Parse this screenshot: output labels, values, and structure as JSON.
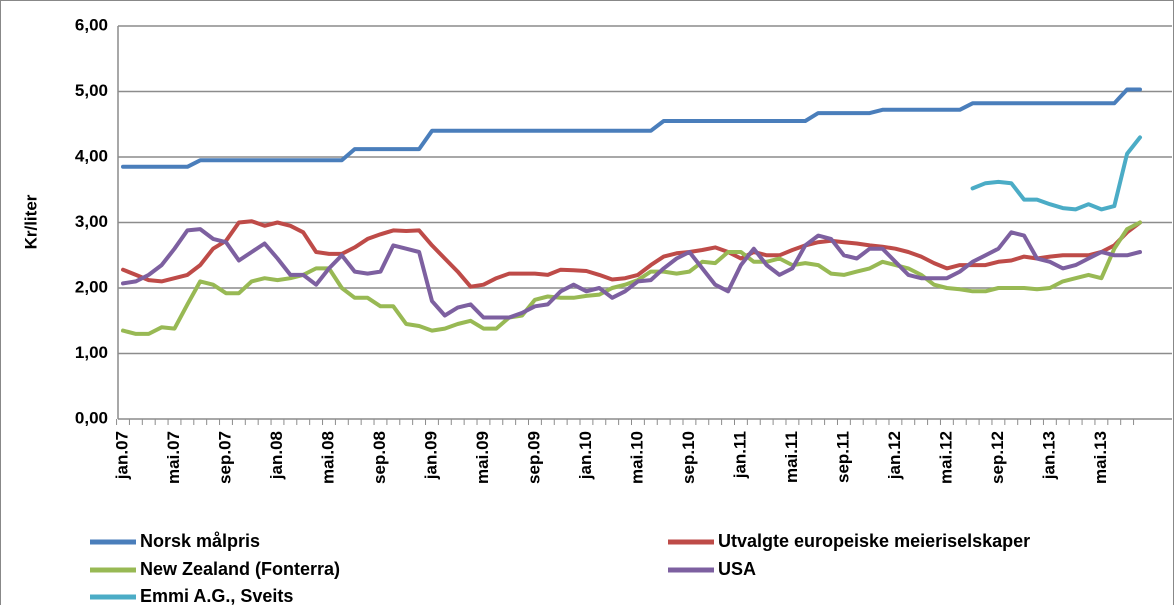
{
  "chart_data": {
    "type": "line",
    "ylabel": "Kr/liter",
    "categories": [
      "jan.07",
      null,
      null,
      null,
      "mai.07",
      null,
      null,
      null,
      "sep.07",
      null,
      null,
      null,
      "jan.08",
      null,
      null,
      null,
      "mai.08",
      null,
      null,
      null,
      "sep.08",
      null,
      null,
      null,
      "jan.09",
      null,
      null,
      null,
      "mai.09",
      null,
      null,
      null,
      "sep.09",
      null,
      null,
      null,
      "jan.10",
      null,
      null,
      null,
      "mai.10",
      null,
      null,
      null,
      "sep.10",
      null,
      null,
      null,
      "jan.11",
      null,
      null,
      null,
      "mai.11",
      null,
      null,
      null,
      "sep.11",
      null,
      null,
      null,
      "jan.12",
      null,
      null,
      null,
      "mai.12",
      null,
      null,
      null,
      "sep.12",
      null,
      null,
      null,
      "jan.13",
      null,
      null,
      null,
      "mai.13",
      null,
      null,
      null
    ],
    "series": [
      {
        "name": "Norsk målpris",
        "color": "#4a7ebb",
        "values": [
          3.85,
          3.85,
          3.85,
          3.85,
          3.85,
          3.85,
          3.95,
          3.95,
          3.95,
          3.95,
          3.95,
          3.95,
          3.95,
          3.95,
          3.95,
          3.95,
          3.95,
          3.95,
          4.12,
          4.12,
          4.12,
          4.12,
          4.12,
          4.12,
          4.4,
          4.4,
          4.4,
          4.4,
          4.4,
          4.4,
          4.4,
          4.4,
          4.4,
          4.4,
          4.4,
          4.4,
          4.4,
          4.4,
          4.4,
          4.4,
          4.4,
          4.4,
          4.55,
          4.55,
          4.55,
          4.55,
          4.55,
          4.55,
          4.55,
          4.55,
          4.55,
          4.55,
          4.55,
          4.55,
          4.67,
          4.67,
          4.67,
          4.67,
          4.67,
          4.72,
          4.72,
          4.72,
          4.72,
          4.72,
          4.72,
          4.72,
          4.82,
          4.82,
          4.82,
          4.82,
          4.82,
          4.82,
          4.82,
          4.82,
          4.82,
          4.82,
          4.82,
          4.82,
          5.03,
          5.03
        ]
      },
      {
        "name": "Utvalgte europeiske meieriselskaper",
        "color": "#be4b48",
        "values": [
          2.28,
          2.2,
          2.12,
          2.1,
          2.15,
          2.2,
          2.35,
          2.6,
          2.72,
          3.0,
          3.02,
          2.95,
          3.0,
          2.95,
          2.85,
          2.55,
          2.52,
          2.52,
          2.62,
          2.75,
          2.82,
          2.88,
          2.87,
          2.88,
          2.65,
          2.45,
          2.25,
          2.02,
          2.05,
          2.15,
          2.22,
          2.22,
          2.22,
          2.2,
          2.28,
          2.27,
          2.26,
          2.2,
          2.13,
          2.15,
          2.2,
          2.35,
          2.48,
          2.53,
          2.55,
          2.58,
          2.62,
          2.55,
          2.45,
          2.55,
          2.5,
          2.5,
          2.58,
          2.65,
          2.7,
          2.72,
          2.7,
          2.68,
          2.65,
          2.63,
          2.6,
          2.55,
          2.48,
          2.38,
          2.3,
          2.35,
          2.35,
          2.35,
          2.4,
          2.42,
          2.48,
          2.45,
          2.48,
          2.5,
          2.5,
          2.5,
          2.55,
          2.65,
          2.85,
          3.0
        ]
      },
      {
        "name": "New Zealand (Fonterra)",
        "color": "#98b954",
        "values": [
          1.35,
          1.3,
          1.3,
          1.4,
          1.38,
          1.75,
          2.1,
          2.05,
          1.92,
          1.92,
          2.1,
          2.15,
          2.12,
          2.15,
          2.2,
          2.3,
          2.3,
          2.0,
          1.85,
          1.85,
          1.72,
          1.72,
          1.45,
          1.42,
          1.35,
          1.38,
          1.45,
          1.5,
          1.38,
          1.38,
          1.55,
          1.58,
          1.82,
          1.87,
          1.85,
          1.85,
          1.88,
          1.9,
          2.0,
          2.05,
          2.12,
          2.25,
          2.25,
          2.22,
          2.25,
          2.4,
          2.38,
          2.55,
          2.55,
          2.4,
          2.4,
          2.45,
          2.35,
          2.38,
          2.35,
          2.22,
          2.2,
          2.25,
          2.3,
          2.4,
          2.35,
          2.3,
          2.2,
          2.05,
          2.0,
          1.98,
          1.95,
          1.95,
          2.0,
          2.0,
          2.0,
          1.98,
          2.0,
          2.1,
          2.15,
          2.2,
          2.15,
          2.6,
          2.9,
          3.0
        ]
      },
      {
        "name": "USA",
        "color": "#7d60a0",
        "values": [
          2.07,
          2.1,
          2.2,
          2.35,
          2.6,
          2.88,
          2.9,
          2.75,
          2.7,
          2.42,
          2.55,
          2.68,
          2.45,
          2.2,
          2.2,
          2.05,
          2.3,
          2.5,
          2.25,
          2.22,
          2.25,
          2.65,
          2.6,
          2.55,
          1.8,
          1.58,
          1.7,
          1.75,
          1.55,
          1.55,
          1.55,
          1.62,
          1.72,
          1.75,
          1.95,
          2.05,
          1.95,
          2.0,
          1.85,
          1.95,
          2.1,
          2.12,
          2.3,
          2.45,
          2.55,
          2.3,
          2.05,
          1.95,
          2.35,
          2.6,
          2.35,
          2.2,
          2.3,
          2.65,
          2.8,
          2.75,
          2.5,
          2.45,
          2.6,
          2.6,
          2.4,
          2.2,
          2.15,
          2.15,
          2.15,
          2.25,
          2.4,
          2.5,
          2.6,
          2.85,
          2.8,
          2.45,
          2.4,
          2.3,
          2.35,
          2.45,
          2.55,
          2.5,
          2.5,
          2.55
        ]
      },
      {
        "name": "Emmi A.G., Sveits",
        "color": "#4bacc6",
        "values": [
          null,
          null,
          null,
          null,
          null,
          null,
          null,
          null,
          null,
          null,
          null,
          null,
          null,
          null,
          null,
          null,
          null,
          null,
          null,
          null,
          null,
          null,
          null,
          null,
          null,
          null,
          null,
          null,
          null,
          null,
          null,
          null,
          null,
          null,
          null,
          null,
          null,
          null,
          null,
          null,
          null,
          null,
          null,
          null,
          null,
          null,
          null,
          null,
          null,
          null,
          null,
          null,
          null,
          null,
          null,
          null,
          null,
          null,
          null,
          null,
          null,
          null,
          null,
          null,
          null,
          null,
          3.52,
          3.6,
          3.62,
          3.6,
          3.35,
          3.35,
          3.28,
          3.22,
          3.2,
          3.28,
          3.2,
          3.25,
          4.05,
          4.3
        ]
      }
    ],
    "ylim": [
      0,
      6
    ],
    "yticks": [
      {
        "value": 0,
        "label": "0,00"
      },
      {
        "value": 1,
        "label": "1,00"
      },
      {
        "value": 2,
        "label": "2,00"
      },
      {
        "value": 3,
        "label": "3,00"
      },
      {
        "value": 4,
        "label": "4,00"
      },
      {
        "value": 5,
        "label": "5,00"
      },
      {
        "value": 6,
        "label": "6,00"
      }
    ],
    "grid": true
  }
}
